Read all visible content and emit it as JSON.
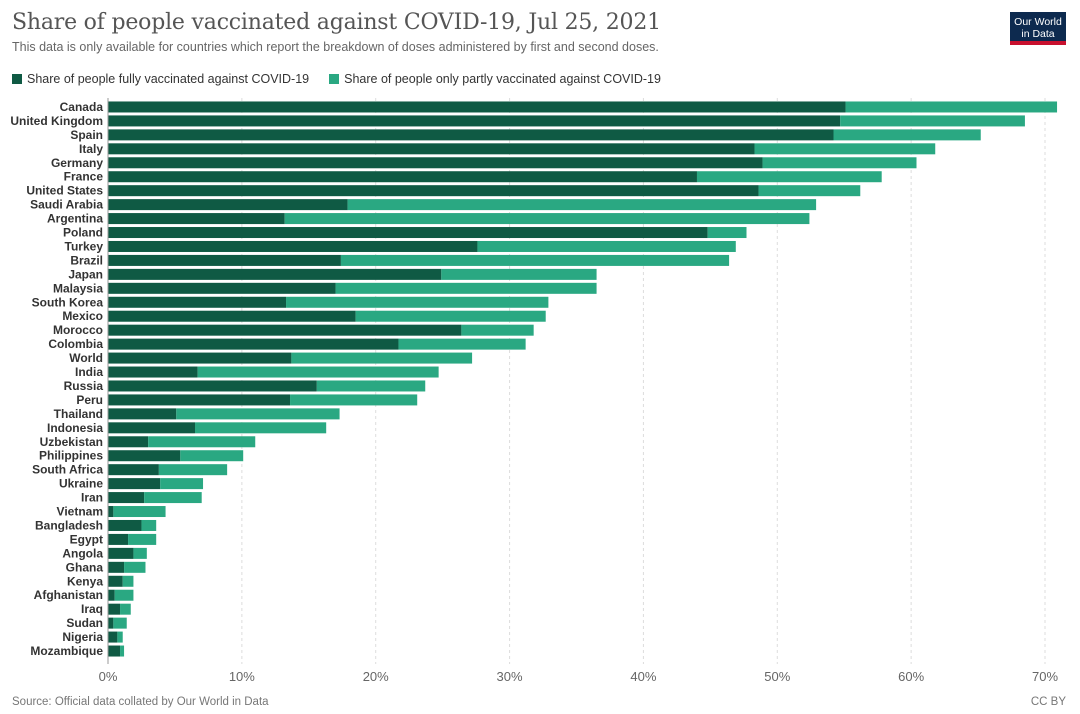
{
  "header": {
    "title": "Share of people vaccinated against COVID-19, Jul 25, 2021",
    "subtitle": "This data is only available for countries which report the breakdown of doses administered by first and second doses.",
    "logo_line1": "Our World",
    "logo_line2": "in Data"
  },
  "footer": {
    "source": "Source: Official data collated by Our World in Data",
    "license": "CC BY"
  },
  "colors": {
    "full": "#0f5a44",
    "partial": "#2aa882",
    "grid": "#dddddd",
    "label": "#333333",
    "tick": "#666666",
    "logo_bg": "#0d2a4f",
    "logo_accent": "#c8102e"
  },
  "chart_data": {
    "type": "bar",
    "orientation": "horizontal",
    "stacked": true,
    "title": "Share of people vaccinated against COVID-19, Jul 25, 2021",
    "xlim": [
      0,
      70
    ],
    "xticks": [
      "0%",
      "10%",
      "20%",
      "30%",
      "40%",
      "50%",
      "60%",
      "70%"
    ],
    "xtick_values": [
      0,
      10,
      20,
      30,
      40,
      50,
      60,
      70
    ],
    "grid": true,
    "legend_position": "top-left",
    "series": [
      {
        "name": "Share of people fully vaccinated against COVID-19",
        "color": "#0f5a44",
        "values": [
          55.1,
          54.7,
          54.2,
          48.3,
          48.9,
          44.0,
          48.6,
          17.9,
          13.2,
          44.8,
          27.6,
          17.4,
          24.9,
          17.0,
          13.3,
          18.5,
          26.4,
          21.7,
          13.7,
          6.7,
          15.6,
          13.6,
          5.1,
          6.5,
          3.0,
          5.4,
          3.8,
          3.9,
          2.7,
          0.4,
          2.5,
          1.5,
          1.9,
          1.2,
          1.1,
          0.5,
          0.9,
          0.4,
          0.7,
          0.9
        ]
      },
      {
        "name": "Share of people only partly vaccinated against COVID-19",
        "color": "#2aa882",
        "values": [
          15.8,
          13.8,
          11.0,
          13.5,
          11.5,
          13.8,
          7.6,
          35.0,
          39.2,
          2.9,
          19.3,
          29.0,
          11.6,
          19.5,
          19.6,
          14.2,
          5.4,
          9.5,
          13.5,
          18.0,
          8.1,
          9.5,
          12.2,
          9.8,
          8.0,
          4.7,
          5.1,
          3.2,
          4.3,
          3.9,
          1.1,
          2.1,
          1.0,
          1.6,
          0.8,
          1.4,
          0.8,
          1.0,
          0.4,
          0.3
        ]
      }
    ],
    "categories": [
      "Canada",
      "United Kingdom",
      "Spain",
      "Italy",
      "Germany",
      "France",
      "United States",
      "Saudi Arabia",
      "Argentina",
      "Poland",
      "Turkey",
      "Brazil",
      "Japan",
      "Malaysia",
      "South Korea",
      "Mexico",
      "Morocco",
      "Colombia",
      "World",
      "India",
      "Russia",
      "Peru",
      "Thailand",
      "Indonesia",
      "Uzbekistan",
      "Philippines",
      "South Africa",
      "Ukraine",
      "Iran",
      "Vietnam",
      "Bangladesh",
      "Egypt",
      "Angola",
      "Ghana",
      "Kenya",
      "Afghanistan",
      "Iraq",
      "Sudan",
      "Nigeria",
      "Mozambique"
    ]
  }
}
